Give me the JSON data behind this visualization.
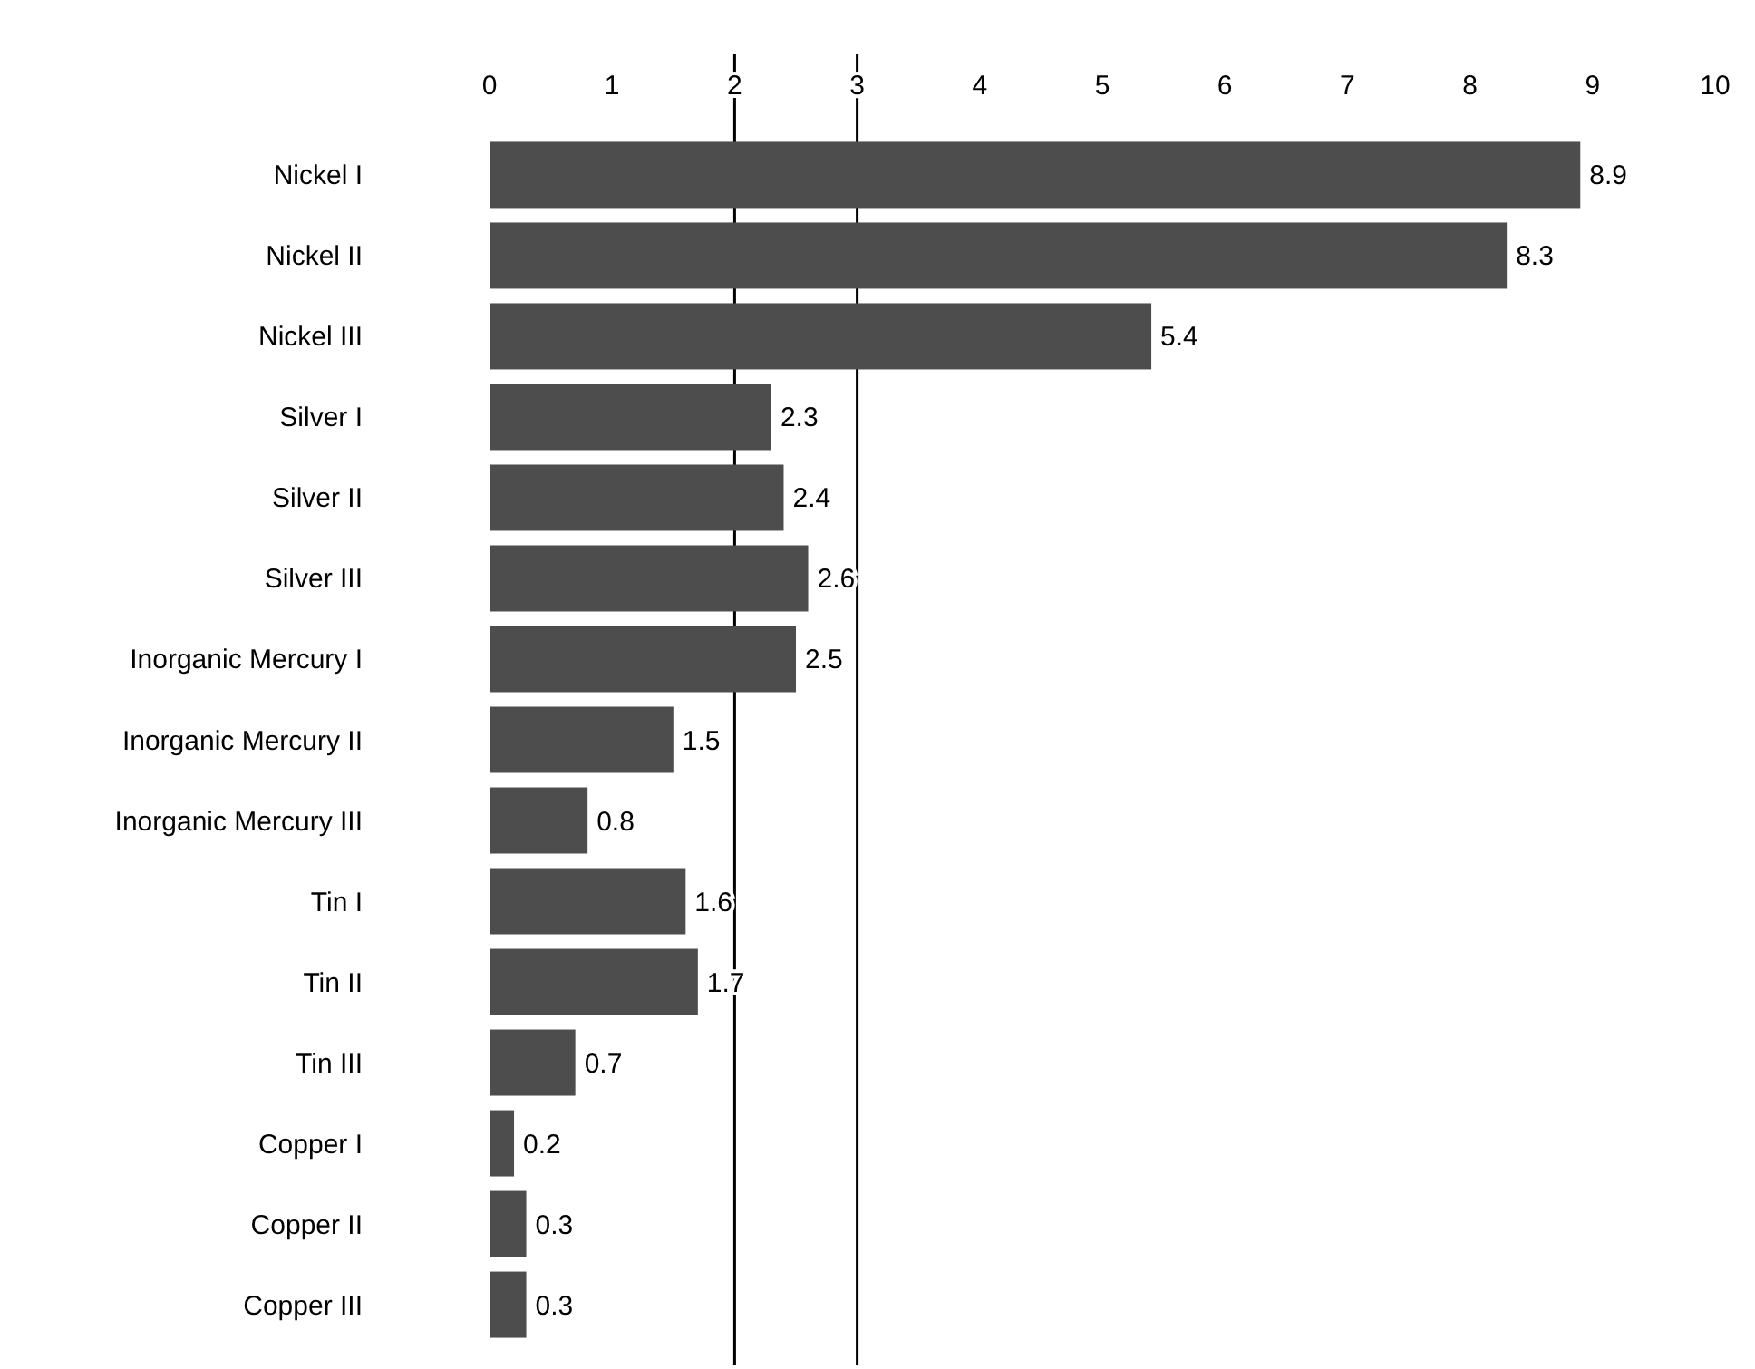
{
  "chart_data": {
    "type": "bar",
    "orientation": "horizontal",
    "categories": [
      "Nickel I",
      "Nickel II",
      "Nickel III",
      "Silver I",
      "Silver II",
      "Silver III",
      "Inorganic Mercury I",
      "Inorganic Mercury II",
      "Inorganic Mercury III",
      "Tin I",
      "Tin II",
      "Tin III",
      "Copper I",
      "Copper II",
      "Copper III"
    ],
    "values": [
      8.9,
      8.3,
      5.4,
      2.3,
      2.4,
      2.6,
      2.5,
      1.5,
      0.8,
      1.6,
      1.7,
      0.7,
      0.2,
      0.3,
      0.3
    ],
    "color": "#4d4d4d",
    "xlim": [
      0,
      10
    ],
    "xticks": [
      0,
      1,
      2,
      3,
      4,
      5,
      6,
      7,
      8,
      9,
      10
    ],
    "data_labels": true,
    "ref_lines": [
      {
        "axis": "x",
        "value": 2,
        "color": "#000000"
      },
      {
        "axis": "x",
        "value": 3,
        "color": "#000000"
      }
    ]
  }
}
